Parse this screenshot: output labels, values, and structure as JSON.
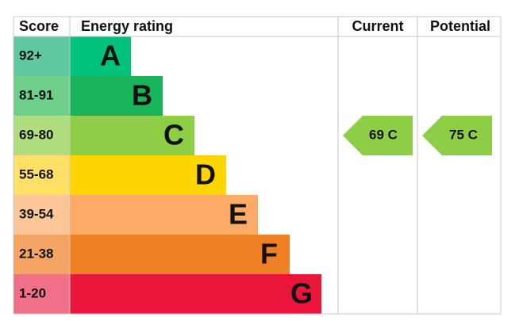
{
  "header": {
    "score": "Score",
    "rating": "Energy rating",
    "current": "Current",
    "potential": "Potential"
  },
  "rows": [
    {
      "score": "92+",
      "letter": "A"
    },
    {
      "score": "81-91",
      "letter": "B"
    },
    {
      "score": "69-80",
      "letter": "C"
    },
    {
      "score": "55-68",
      "letter": "D"
    },
    {
      "score": "39-54",
      "letter": "E"
    },
    {
      "score": "21-38",
      "letter": "F"
    },
    {
      "score": "1-20",
      "letter": "G"
    }
  ],
  "current": {
    "label": "69 C"
  },
  "potential": {
    "label": "75 C"
  }
}
